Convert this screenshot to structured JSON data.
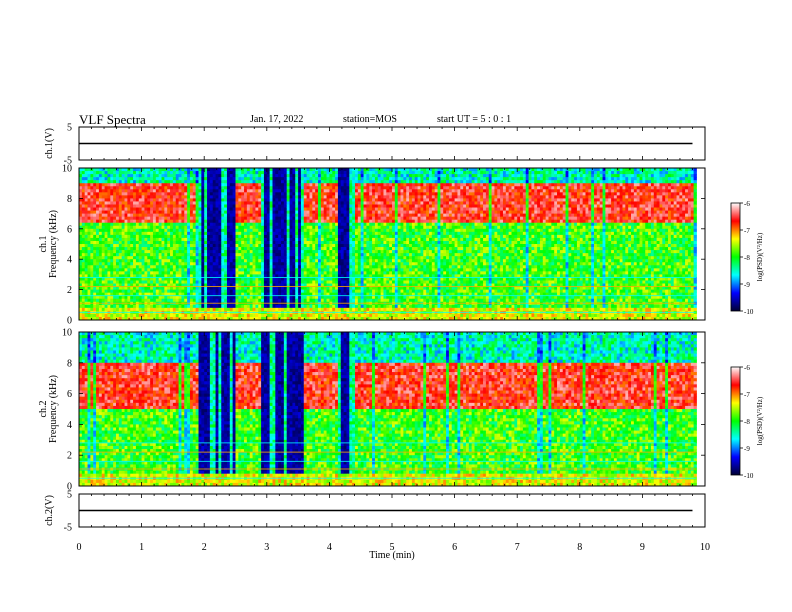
{
  "header": {
    "title": "VLF Spectra",
    "date": "Jan. 17, 2022",
    "station": "station=MOS",
    "start": "start  UT =  5 : 0  : 1"
  },
  "chart_data": [
    {
      "panel": "ch1-waveform",
      "type": "line",
      "ylabel": "ch.1(V)",
      "ylim": [
        -5,
        5
      ],
      "yticks": [
        "5",
        "-5"
      ],
      "xlim": [
        0,
        10
      ],
      "x": [
        0,
        9.8
      ],
      "y": [
        0,
        0
      ]
    },
    {
      "panel": "ch1-spectrogram",
      "type": "heatmap",
      "ylabel": "ch.1\nFrequency (kHz)",
      "ylim": [
        0,
        10
      ],
      "yticks": [
        "0",
        "2",
        "4",
        "6",
        "8",
        "10"
      ],
      "xlim": [
        0,
        10
      ],
      "colorbar": {
        "label": "log(PSD)(V²/Hz)",
        "min": -10,
        "max": -6,
        "ticks": [
          "-6",
          "-7",
          "-8",
          "-9",
          "-10"
        ]
      },
      "dark_intervals_min": [
        [
          1.9,
          2.5
        ],
        [
          2.9,
          3.6
        ],
        [
          4.15,
          4.4
        ]
      ],
      "strong_band_khz": [
        6.5,
        9.0
      ]
    },
    {
      "panel": "ch2-spectrogram",
      "type": "heatmap",
      "ylabel": "ch.2\nFrequency (kHz)",
      "ylim": [
        0,
        10
      ],
      "yticks": [
        "0",
        "2",
        "4",
        "6",
        "8",
        "10"
      ],
      "xlim": [
        0,
        10
      ],
      "colorbar": {
        "label": "log(PSD)(V²/Hz)",
        "min": -10,
        "max": -6,
        "ticks": [
          "-6",
          "-7",
          "-8",
          "-9",
          "-10"
        ]
      },
      "dark_intervals_min": [
        [
          1.9,
          2.5
        ],
        [
          2.9,
          3.6
        ],
        [
          4.15,
          4.4
        ]
      ],
      "strong_band_khz": [
        5.0,
        8.0
      ]
    },
    {
      "panel": "ch2-waveform",
      "type": "line",
      "ylabel": "ch.2(V)",
      "ylim": [
        -5,
        5
      ],
      "yticks": [
        "5",
        "-5"
      ],
      "xlim": [
        0,
        10
      ],
      "x": [
        0,
        9.8
      ],
      "y": [
        0,
        0
      ]
    }
  ],
  "xaxis": {
    "label": "Time (min)",
    "ticks": [
      "0",
      "1",
      "2",
      "3",
      "4",
      "5",
      "6",
      "7",
      "8",
      "9",
      "10"
    ]
  },
  "colors": {
    "colormap": [
      "#000033",
      "#0000ff",
      "#00ffff",
      "#00ff00",
      "#ffff00",
      "#ff0000",
      "#ffffff"
    ]
  }
}
